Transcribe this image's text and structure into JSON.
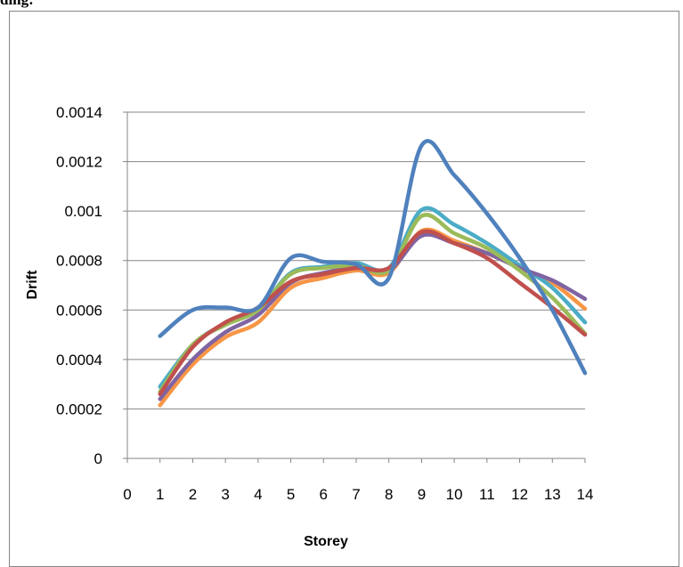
{
  "heading_fragment": "ding:",
  "chart_data": {
    "type": "line",
    "title": "",
    "xlabel": "Storey",
    "ylabel": "Drift",
    "xlim": [
      0,
      14
    ],
    "ylim": [
      0,
      0.0014
    ],
    "x_ticks": [
      "0",
      "1",
      "2",
      "3",
      "4",
      "5",
      "6",
      "7",
      "8",
      "9",
      "10",
      "11",
      "12",
      "13",
      "14"
    ],
    "y_ticks": [
      "0",
      "0.0002",
      "0.0004",
      "0.0006",
      "0.0008",
      "0.001",
      "0.0012",
      "0.0014"
    ],
    "grid": "horizontal",
    "legend": "none",
    "x": [
      1,
      2,
      3,
      4,
      5,
      6,
      7,
      8,
      9,
      10,
      11,
      12,
      13,
      14
    ],
    "series": [
      {
        "color": "#4f81bd",
        "values": [
          0.000495,
          0.0006,
          0.00061,
          0.00061,
          0.00081,
          0.000795,
          0.000785,
          0.00073,
          0.001265,
          0.001145,
          0.00099,
          0.00081,
          0.0006,
          0.000345
        ]
      },
      {
        "color": "#c0504d",
        "values": [
          0.00026,
          0.00045,
          0.00055,
          0.00061,
          0.000715,
          0.000745,
          0.00077,
          0.00077,
          0.000915,
          0.00087,
          0.00081,
          0.00071,
          0.00061,
          0.0005
        ]
      },
      {
        "color": "#9bbb59",
        "values": [
          0.00027,
          0.00046,
          0.00054,
          0.0006,
          0.000745,
          0.00077,
          0.00078,
          0.00076,
          0.00098,
          0.00091,
          0.00085,
          0.00076,
          0.00065,
          0.000505
        ]
      },
      {
        "color": "#8064a2",
        "values": [
          0.00024,
          0.0004,
          0.00051,
          0.00058,
          0.00071,
          0.00075,
          0.00077,
          0.00076,
          0.0009,
          0.00087,
          0.00083,
          0.00077,
          0.00072,
          0.000645
        ]
      },
      {
        "color": "#4bacc6",
        "values": [
          0.00029,
          0.00046,
          0.000545,
          0.0006,
          0.00075,
          0.000775,
          0.00079,
          0.00077,
          0.001005,
          0.000945,
          0.00087,
          0.00078,
          0.00069,
          0.00055
        ]
      },
      {
        "color": "#f79646",
        "values": [
          0.000215,
          0.00038,
          0.00049,
          0.00055,
          0.00069,
          0.00073,
          0.00076,
          0.00075,
          0.00092,
          0.00088,
          0.00083,
          0.00077,
          0.00071,
          0.000605
        ]
      }
    ]
  }
}
